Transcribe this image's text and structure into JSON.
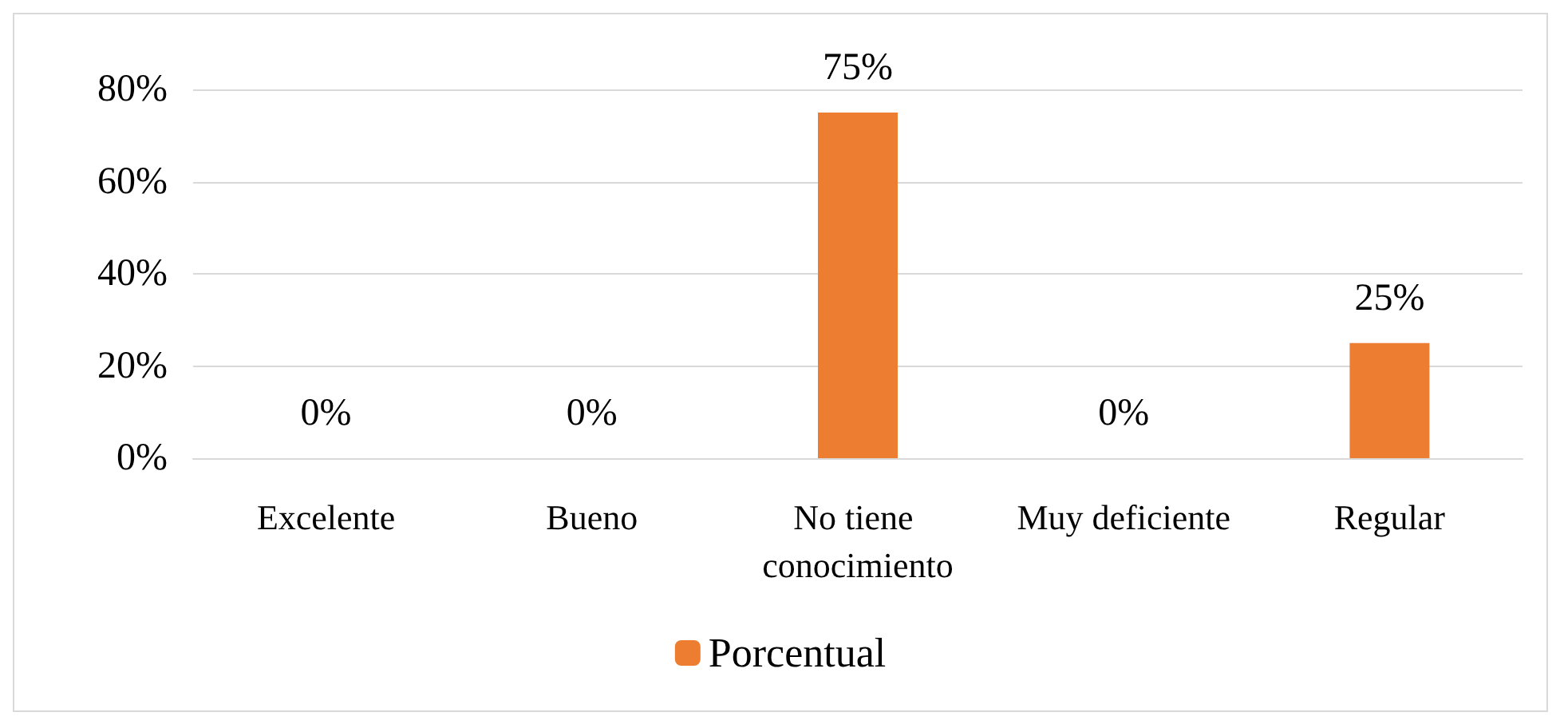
{
  "chart_data": {
    "type": "bar",
    "categories": [
      "Excelente",
      "Bueno",
      "No tiene conocimiento",
      "Muy deficiente",
      "Regular"
    ],
    "series": [
      {
        "name": "Porcentual",
        "color": "#ed7d31",
        "values": [
          0,
          0,
          75,
          0,
          25
        ],
        "value_labels": [
          "0%",
          "0%",
          "75%",
          "0%",
          "25%"
        ]
      }
    ],
    "ylim": [
      0,
      80
    ],
    "yticks": [
      {
        "value": 0,
        "label": "0%"
      },
      {
        "value": 20,
        "label": "20%"
      },
      {
        "value": 40,
        "label": "40%"
      },
      {
        "value": 60,
        "label": "60%"
      },
      {
        "value": 80,
        "label": "80%"
      }
    ],
    "grid": "y",
    "legend": "bottom"
  }
}
